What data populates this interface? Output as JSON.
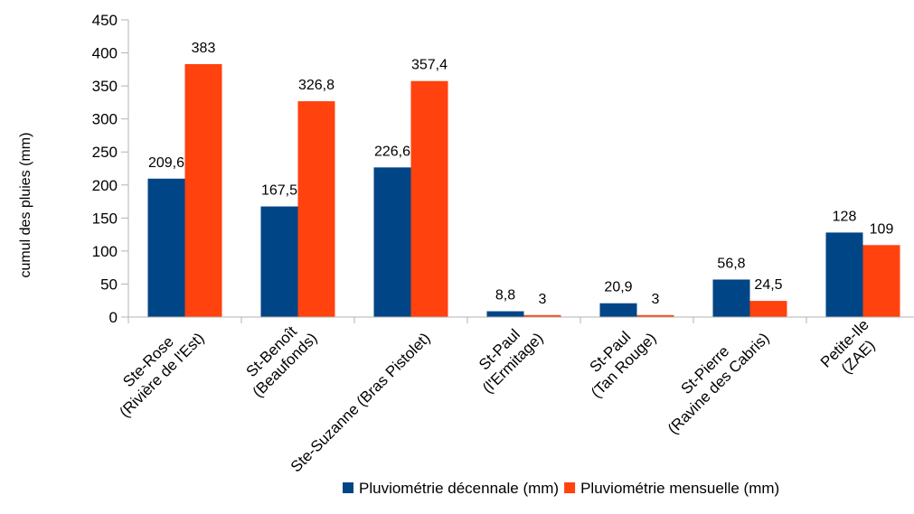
{
  "chart_data": {
    "type": "bar",
    "title": "",
    "xlabel": "",
    "ylabel": "cumul des pluies (mm)",
    "ylim": [
      0,
      450
    ],
    "yticks": [
      0,
      50,
      100,
      150,
      200,
      250,
      300,
      350,
      400,
      450
    ],
    "grid": false,
    "legend_position": "bottom",
    "categories": [
      [
        "Ste-Rose",
        "(Rivière de l'Est)"
      ],
      [
        "St-Benoît",
        "(Beaufonds)"
      ],
      [
        "Ste-Suzanne (Bras Pistolet)"
      ],
      [
        "St-Paul",
        "(l'Ermitage)"
      ],
      [
        "St-Paul",
        "(Tan Rouge)"
      ],
      [
        "St-Pierre",
        "(Ravine des Cabris)"
      ],
      [
        "Petite-Ile",
        "(ZAE)"
      ]
    ],
    "series": [
      {
        "name": "Pluviométrie décennale (mm)",
        "color": "#004586",
        "values": [
          209.6,
          167.5,
          226.6,
          8.8,
          20.9,
          56.8,
          128
        ],
        "labels": [
          "209,6",
          "167,5",
          "226,6",
          "8,8",
          "20,9",
          "56,8",
          "128"
        ]
      },
      {
        "name": "Pluviométrie mensuelle (mm)",
        "color": "#ff420e",
        "values": [
          383,
          326.8,
          357.4,
          3,
          3,
          24.5,
          109
        ],
        "labels": [
          "383",
          "326,8",
          "357,4",
          "3",
          "3",
          "24,5",
          "109"
        ]
      }
    ]
  }
}
